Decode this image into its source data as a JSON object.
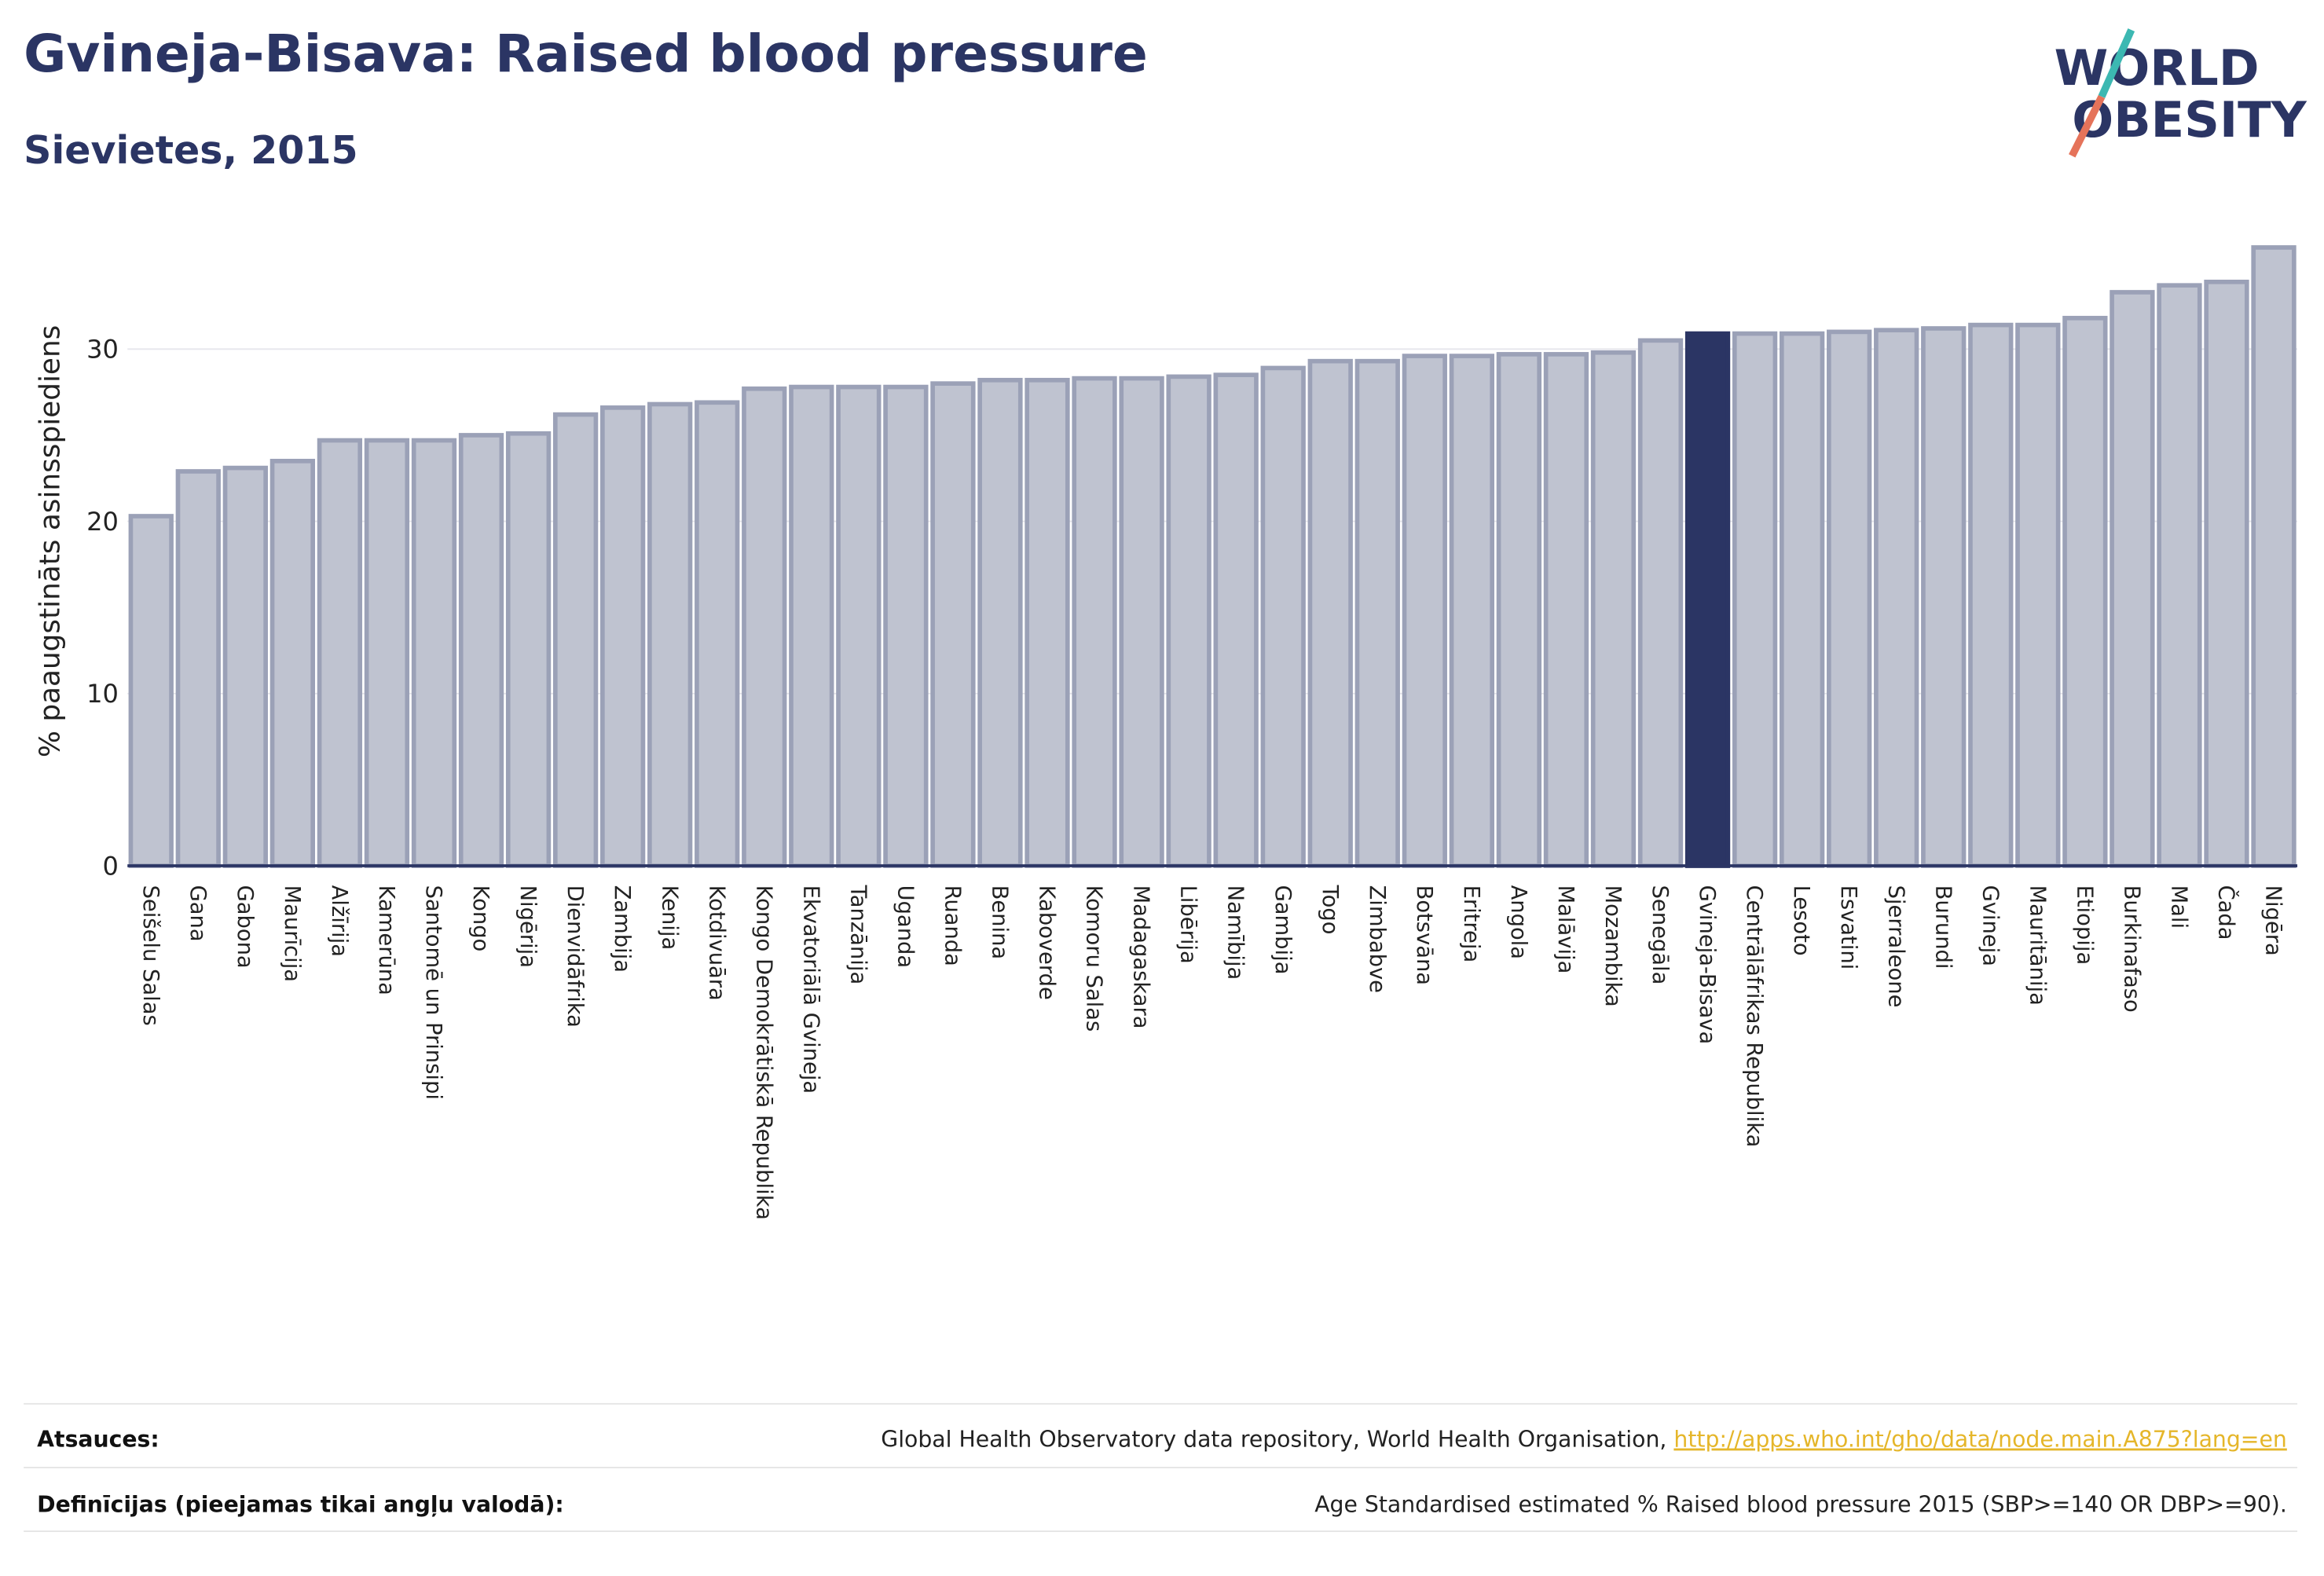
{
  "chart_data": {
    "type": "bar",
    "title": "Gvineja-Bisava: Raised blood pressure",
    "subtitle": "Sievietes, 2015",
    "y_label": "% paaugstināts asinsspiediens",
    "categories": [
      "Seišelu Salas",
      "Gana",
      "Gabona",
      "Maurīcija",
      "Alžīrija",
      "Kamerūna",
      "Santomē un Prinsipi",
      "Kongo",
      "Nigērija",
      "Dienvidāfrika",
      "Zambija",
      "Kenija",
      "Kotdivuāra",
      "Kongo Demokrātiskā Republika",
      "Ekvatoriālā Gvineja",
      "Tanzānija",
      "Uganda",
      "Ruanda",
      "Benina",
      "Kaboverde",
      "Komoru Salas",
      "Madagaskara",
      "Libērija",
      "Namībija",
      "Gambija",
      "Togo",
      "Zimbabve",
      "Botsvāna",
      "Eritreja",
      "Angola",
      "Malāvija",
      "Mozambika",
      "Senegāla",
      "Gvineja-Bisava",
      "Centrālāfrikas Republika",
      "Lesoto",
      "Esvatini",
      "Sjerraleone",
      "Burundi",
      "Gvineja",
      "Mauritānija",
      "Etiopija",
      "Burkinafaso",
      "Mali",
      "Čada",
      "Nigēra"
    ],
    "values": [
      20.3,
      22.9,
      23.1,
      23.5,
      24.7,
      24.7,
      24.7,
      25.0,
      25.1,
      26.2,
      26.6,
      26.8,
      26.9,
      27.7,
      27.8,
      27.8,
      27.8,
      28.0,
      28.2,
      28.2,
      28.3,
      28.3,
      28.4,
      28.5,
      28.9,
      29.3,
      29.3,
      29.6,
      29.6,
      29.7,
      29.7,
      29.8,
      30.5,
      30.9,
      30.9,
      30.9,
      31.0,
      31.1,
      31.2,
      31.4,
      31.4,
      31.8,
      33.3,
      33.7,
      33.9,
      35.9
    ],
    "colors": [
      "#bfc3d0",
      "#bfc3d0",
      "#bfc3d0",
      "#bfc3d0",
      "#bfc3d0",
      "#bfc3d0",
      "#bfc3d0",
      "#bfc3d0",
      "#bfc3d0",
      "#bfc3d0",
      "#bfc3d0",
      "#bfc3d0",
      "#bfc3d0",
      "#bfc3d0",
      "#bfc3d0",
      "#bfc3d0",
      "#bfc3d0",
      "#bfc3d0",
      "#bfc3d0",
      "#bfc3d0",
      "#bfc3d0",
      "#bfc3d0",
      "#bfc3d0",
      "#bfc3d0",
      "#bfc3d0",
      "#bfc3d0",
      "#bfc3d0",
      "#bfc3d0",
      "#bfc3d0",
      "#bfc3d0",
      "#bfc3d0",
      "#bfc3d0",
      "#bfc3d0",
      "#2b3564",
      "#bfc3d0",
      "#bfc3d0",
      "#bfc3d0",
      "#bfc3d0",
      "#bfc3d0",
      "#bfc3d0",
      "#bfc3d0",
      "#bfc3d0",
      "#bfc3d0",
      "#bfc3d0",
      "#bfc3d0",
      "#bfc3d0"
    ],
    "ylim": [
      0,
      37
    ],
    "yticks": [
      0,
      10,
      20,
      30
    ],
    "grid": true
  },
  "logo": {
    "line1": "WORLD",
    "line2": "OBESITY"
  },
  "footer": {
    "sources_label": "Atsauces:",
    "sources_text": "Global Health Observatory data repository, World Health Organisation,",
    "sources_link": "http://apps.who.int/gho/data/node.main.A875?lang=en",
    "definitions_label": "Definīcijas (pieejamas tikai angļu valodā):",
    "definitions_text": "Age Standardised estimated % Raised blood pressure 2015 (SBP>=140 OR DBP>=90)."
  }
}
